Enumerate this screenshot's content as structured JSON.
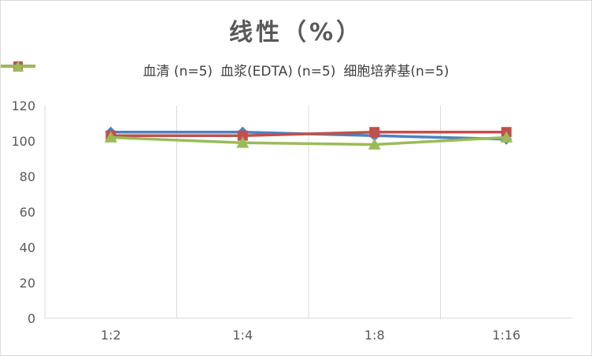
{
  "chart_data": {
    "type": "line",
    "title": "线性（%）",
    "categories": [
      "1:2",
      "1:4",
      "1:8",
      "1:16"
    ],
    "ylim": [
      0,
      120
    ],
    "yticks": [
      0,
      20,
      40,
      60,
      80,
      100,
      120
    ],
    "grid": "vertical",
    "legend_position": "top",
    "series": [
      {
        "name": "血清 (n=5)",
        "values": [
          105,
          105,
          103,
          101
        ],
        "color": "#4f81bd",
        "marker": "diamond"
      },
      {
        "name": "血浆(EDTA) (n=5)",
        "values": [
          103,
          103,
          105,
          105
        ],
        "color": "#c0504d",
        "marker": "square"
      },
      {
        "name": "细胞培养基(n=5)",
        "values": [
          102,
          99,
          98,
          102
        ],
        "color": "#9bbb59",
        "marker": "triangle"
      }
    ]
  }
}
